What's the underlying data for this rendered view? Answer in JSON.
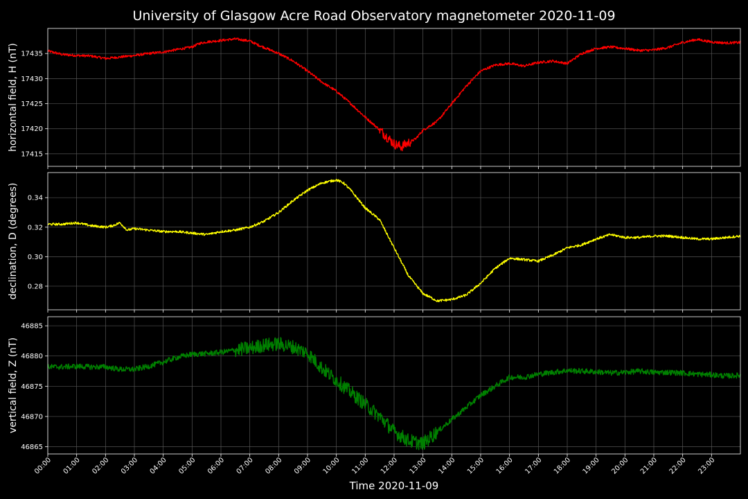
{
  "figure": {
    "title": "University of Glasgow Acre Road Observatory magnetometer 2020-11-09",
    "background": "#000000",
    "grid_color": "#555555",
    "axis_color": "#ffffff"
  },
  "chart_data": [
    {
      "type": "line",
      "id": "H",
      "ylabel": "horizontal field, H (nT)",
      "color": "#ff0000",
      "xlim": [
        0,
        24
      ],
      "ylim": [
        17412.5,
        17440
      ],
      "yticks": [
        17415,
        17420,
        17425,
        17430,
        17435
      ],
      "grid": true,
      "noise": 0.25,
      "series": [
        {
          "x": [
            0,
            0.5,
            1,
            1.5,
            2,
            2.5,
            3,
            3.5,
            4,
            4.5,
            5,
            5.25,
            5.5,
            6,
            6.5,
            7,
            7.25,
            7.5,
            8,
            8.5,
            9,
            9.5,
            10,
            10.5,
            11,
            11.5,
            12,
            12.25,
            12.5,
            12.75,
            13,
            13.5,
            14,
            14.5,
            15,
            15.5,
            16,
            16.5,
            17,
            17.5,
            18,
            18.5,
            19,
            19.5,
            20,
            20.5,
            21,
            21.5,
            22,
            22.5,
            23,
            23.5,
            24
          ],
          "y": [
            17435.5,
            17434.8,
            17434.6,
            17434.5,
            17434.0,
            17434.3,
            17434.6,
            17435.0,
            17435.3,
            17435.8,
            17436.3,
            17437.0,
            17437.3,
            17437.6,
            17437.9,
            17437.5,
            17436.8,
            17436.2,
            17435.0,
            17433.5,
            17431.5,
            17429.3,
            17427.5,
            17425.0,
            17422.3,
            17419.8,
            17417.0,
            17416.4,
            17417.2,
            17418.0,
            17419.7,
            17421.5,
            17425.0,
            17428.5,
            17431.5,
            17432.7,
            17433.0,
            17432.5,
            17433.2,
            17433.5,
            17433.0,
            17435.0,
            17436.0,
            17436.3,
            17436.0,
            17435.6,
            17435.7,
            17436.2,
            17437.2,
            17437.8,
            17437.3,
            17437.1,
            17437.2
          ]
        }
      ]
    },
    {
      "type": "line",
      "id": "D",
      "ylabel": "declination, D (degrees)",
      "color": "#ffff00",
      "xlim": [
        0,
        24
      ],
      "ylim": [
        0.264,
        0.357
      ],
      "yticks": [
        0.28,
        0.3,
        0.32,
        0.34
      ],
      "grid": true,
      "noise": 0.0008,
      "series": [
        {
          "x": [
            0,
            0.5,
            1,
            1.5,
            2,
            2.25,
            2.5,
            2.75,
            3,
            3.5,
            4,
            4.5,
            5,
            5.5,
            6,
            6.5,
            7,
            7.5,
            8,
            8.5,
            9,
            9.5,
            10,
            10.25,
            10.5,
            11,
            11.5,
            12,
            12.5,
            13,
            13.5,
            14,
            14.5,
            15,
            15.5,
            16,
            16.5,
            17,
            17.5,
            18,
            18.5,
            19,
            19.5,
            20,
            20.5,
            21,
            21.5,
            22,
            22.5,
            23,
            23.5,
            24
          ],
          "y": [
            0.322,
            0.322,
            0.323,
            0.321,
            0.32,
            0.321,
            0.323,
            0.318,
            0.319,
            0.318,
            0.317,
            0.317,
            0.316,
            0.315,
            0.317,
            0.318,
            0.32,
            0.324,
            0.33,
            0.338,
            0.345,
            0.35,
            0.352,
            0.35,
            0.345,
            0.333,
            0.325,
            0.306,
            0.287,
            0.275,
            0.27,
            0.271,
            0.274,
            0.282,
            0.292,
            0.299,
            0.298,
            0.297,
            0.301,
            0.306,
            0.308,
            0.312,
            0.315,
            0.313,
            0.313,
            0.314,
            0.314,
            0.313,
            0.312,
            0.312,
            0.313,
            0.314
          ],
          "y_end": 0.314
        }
      ]
    },
    {
      "type": "line",
      "id": "Z",
      "ylabel": "vertical field, Z (nT)",
      "color": "#008000",
      "xlim": [
        0,
        24
      ],
      "ylim": [
        46863.8,
        46886.5
      ],
      "yticks": [
        46865,
        46870,
        46875,
        46880,
        46885
      ],
      "grid": true,
      "noise": 0.45,
      "series": [
        {
          "x": [
            0,
            0.5,
            1,
            1.5,
            2,
            2.5,
            3,
            3.5,
            4,
            4.5,
            5,
            5.5,
            6,
            6.5,
            7,
            7.5,
            8,
            8.5,
            9,
            9.5,
            10,
            10.5,
            11,
            11.5,
            12,
            12.5,
            13,
            13.5,
            14,
            14.5,
            15,
            15.5,
            16,
            16.5,
            17,
            17.5,
            18,
            18.5,
            19,
            19.5,
            20,
            20.5,
            21,
            21.5,
            22,
            22.5,
            23,
            23.5,
            24
          ],
          "y": [
            46878.2,
            46878.2,
            46878.3,
            46878.2,
            46878.2,
            46877.8,
            46877.8,
            46878.3,
            46879.0,
            46879.8,
            46880.3,
            46880.4,
            46880.6,
            46881.0,
            46881.3,
            46881.8,
            46882.0,
            46881.5,
            46880.5,
            46878.0,
            46876.0,
            46874.0,
            46872.0,
            46870.0,
            46867.5,
            46866.0,
            46865.5,
            46867.5,
            46869.5,
            46871.5,
            46873.5,
            46875.0,
            46876.5,
            46876.5,
            46877.0,
            46877.3,
            46877.6,
            46877.5,
            46877.4,
            46877.2,
            46877.3,
            46877.5,
            46877.3,
            46877.3,
            46877.2,
            46877.0,
            46876.9,
            46876.7,
            46876.8
          ]
        }
      ]
    }
  ],
  "xaxis": {
    "label": "Time 2020-11-09",
    "ticklabels": [
      "00:00",
      "01:00",
      "02:00",
      "03:00",
      "04:00",
      "05:00",
      "06:00",
      "07:00",
      "08:00",
      "09:00",
      "10:00",
      "11:00",
      "12:00",
      "13:00",
      "14:00",
      "15:00",
      "16:00",
      "17:00",
      "18:00",
      "19:00",
      "20:00",
      "21:00",
      "22:00",
      "23:00"
    ]
  }
}
